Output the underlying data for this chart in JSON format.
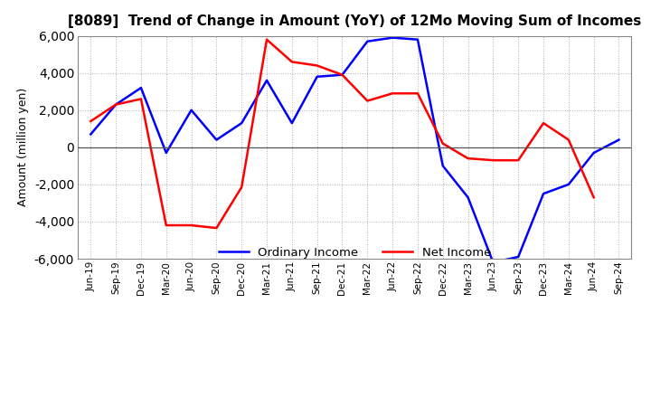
{
  "title": "[8089]  Trend of Change in Amount (YoY) of 12Mo Moving Sum of Incomes",
  "ylabel": "Amount (million yen)",
  "x_labels": [
    "Jun-19",
    "Sep-19",
    "Dec-19",
    "Mar-20",
    "Jun-20",
    "Sep-20",
    "Dec-20",
    "Mar-21",
    "Jun-21",
    "Sep-21",
    "Dec-21",
    "Mar-22",
    "Jun-22",
    "Sep-22",
    "Dec-22",
    "Mar-23",
    "Jun-23",
    "Sep-23",
    "Dec-23",
    "Mar-24",
    "Jun-24",
    "Sep-24"
  ],
  "ordinary_income": [
    700,
    2300,
    3200,
    -300,
    2000,
    400,
    1300,
    3600,
    1300,
    3800,
    3900,
    5700,
    5900,
    5800,
    -1000,
    -2700,
    -6200,
    -5900,
    -2500,
    -2000,
    -300,
    400
  ],
  "net_income": [
    1400,
    2300,
    2600,
    -4200,
    -4200,
    -4350,
    -2150,
    5800,
    4600,
    4400,
    3900,
    2500,
    2900,
    2900,
    200,
    -600,
    -700,
    -700,
    1300,
    400,
    -2700,
    null
  ],
  "ordinary_color": "#0000ff",
  "net_color": "#ff0000",
  "ylim": [
    -6000,
    6000
  ],
  "yticks": [
    -6000,
    -4000,
    -2000,
    0,
    2000,
    4000,
    6000
  ],
  "background_color": "#ffffff",
  "grid_color": "#b0b0b0",
  "legend_ordinary": "Ordinary Income",
  "legend_net": "Net Income"
}
